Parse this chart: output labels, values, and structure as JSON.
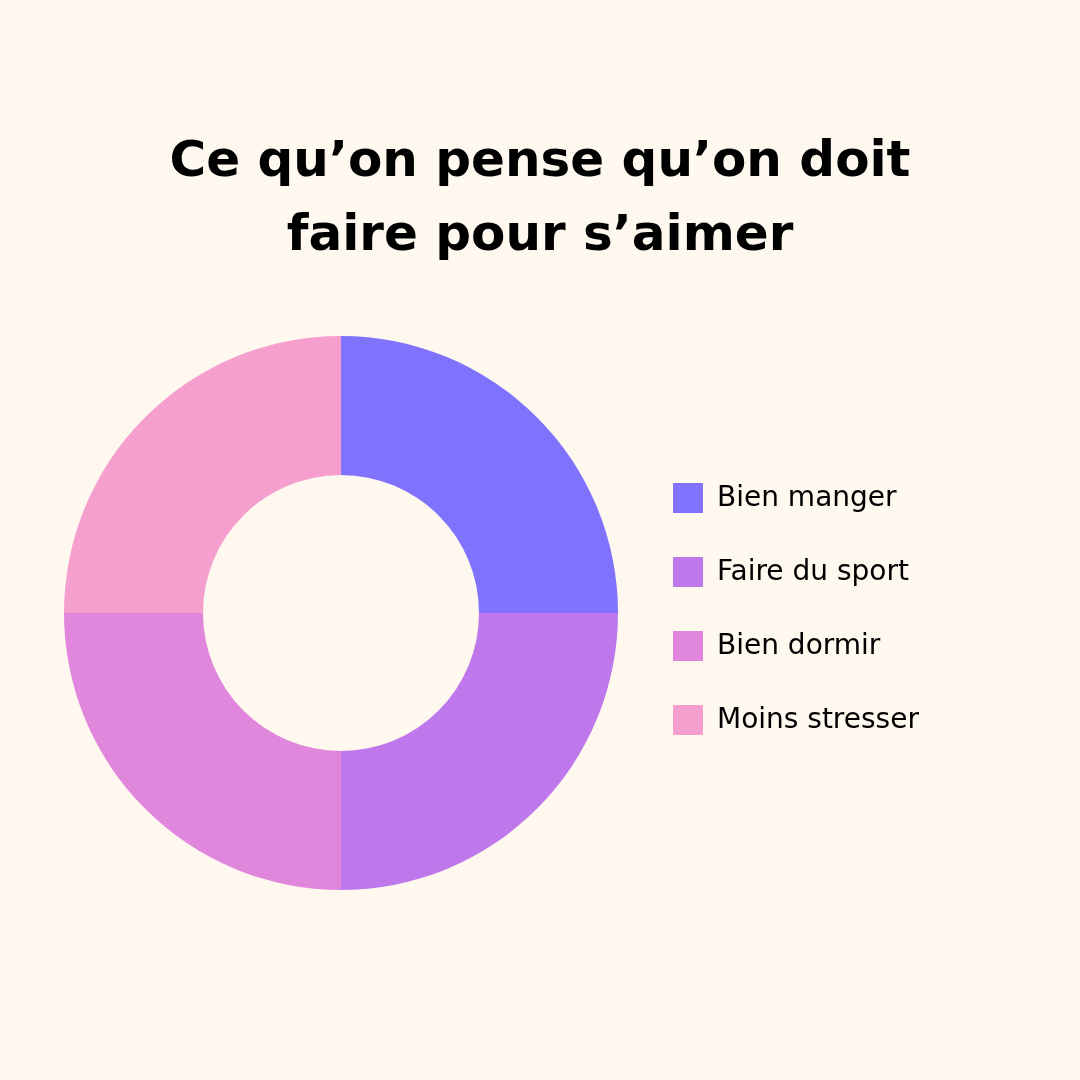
{
  "chart_data": {
    "type": "donut",
    "title": "Ce qu’on pense qu’on doit\nfaire pour s’aimer",
    "categories": [
      "Bien manger",
      "Faire du sport",
      "Bien dormir",
      "Moins stresser"
    ],
    "values": [
      25,
      25,
      25,
      25
    ],
    "colors": [
      "#7f73fe",
      "#bf77ec",
      "#e086dc",
      "#f59fcf"
    ],
    "legend": "right"
  }
}
